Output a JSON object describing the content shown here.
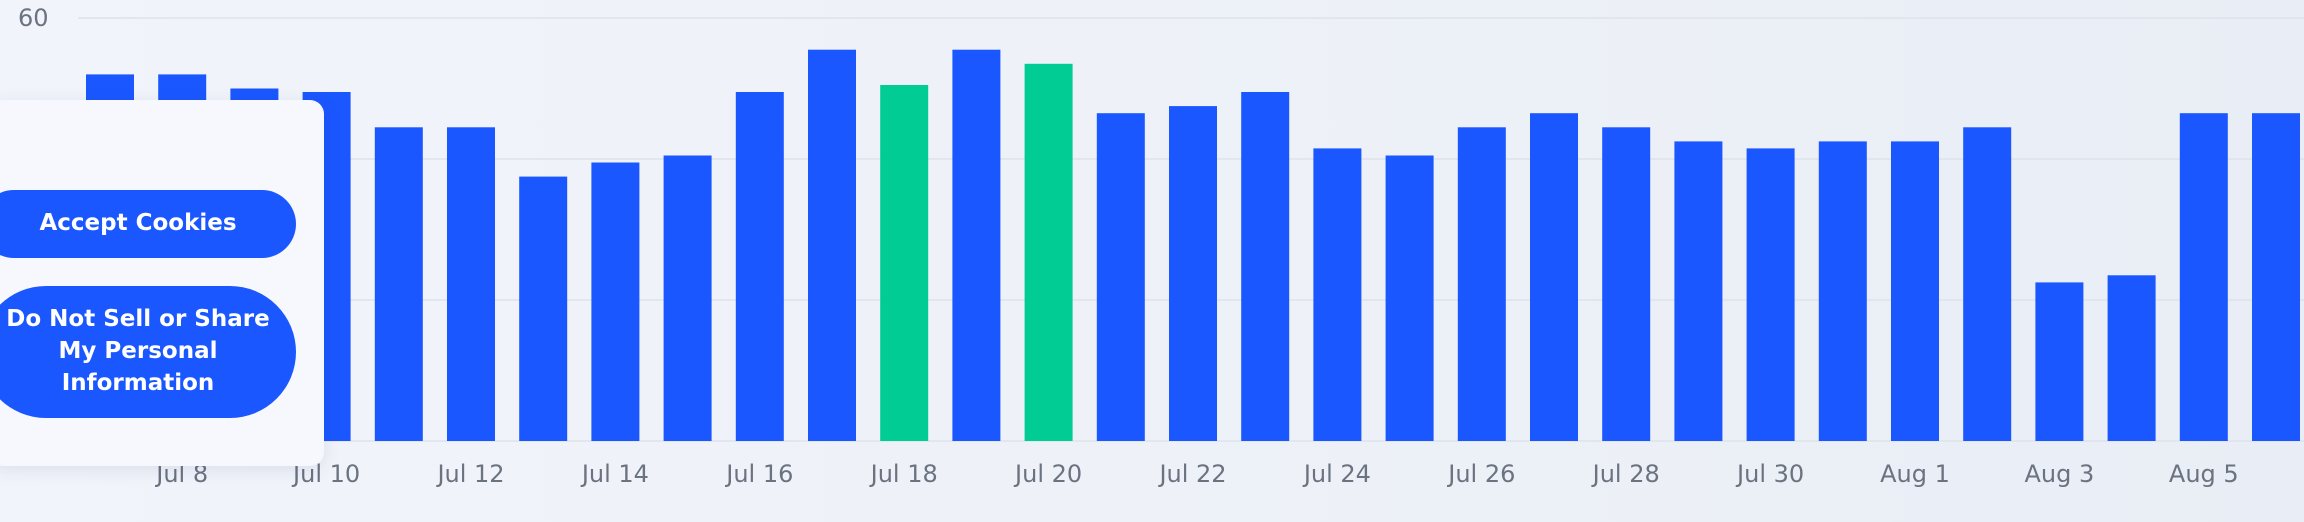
{
  "chart_data": {
    "type": "bar",
    "categories": [
      "Jul 7",
      "Jul 8",
      "Jul 9",
      "Jul 10",
      "Jul 11",
      "Jul 12",
      "Jul 13",
      "Jul 14",
      "Jul 15",
      "Jul 16",
      "Jul 17",
      "Jul 18",
      "Jul 19",
      "Jul 20",
      "Jul 21",
      "Jul 22",
      "Jul 23",
      "Jul 24",
      "Jul 25",
      "Jul 26",
      "Jul 27",
      "Jul 28",
      "Jul 29",
      "Jul 30",
      "Jul 31",
      "Aug 1",
      "Aug 2",
      "Aug 3",
      "Aug 4",
      "Aug 5",
      "Aug 6"
    ],
    "values": [
      52,
      52,
      50,
      49.5,
      44.5,
      44.5,
      37.5,
      39.5,
      40.5,
      49.5,
      55.5,
      50.5,
      55.5,
      53.5,
      46.5,
      47.5,
      49.5,
      41.5,
      40.5,
      44.5,
      46.5,
      44.5,
      42.5,
      41.5,
      42.5,
      42.5,
      44.5,
      22.5,
      23.5,
      46.5,
      46.5
    ],
    "highlighted": [
      "Jul 18",
      "Jul 20"
    ],
    "ylim": [
      0,
      60
    ],
    "ytick_labels": [
      "60"
    ],
    "xtick_labels": [
      "Jul 8",
      "Jul 10",
      "Jul 12",
      "Jul 14",
      "Jul 16",
      "Jul 18",
      "Jul 20",
      "Jul 22",
      "Jul 24",
      "Jul 26",
      "Jul 28",
      "Jul 30",
      "Aug 1",
      "Aug 3",
      "Aug 5"
    ],
    "colors": {
      "bar": "#1b57ff",
      "highlight": "#00cc94",
      "grid": "#dde2ec",
      "tick": "#6b7280"
    },
    "grid": true
  },
  "consent": {
    "accept_label": "Accept Cookies",
    "do_not_sell_label": "Do Not Sell or Share My Personal Information"
  }
}
